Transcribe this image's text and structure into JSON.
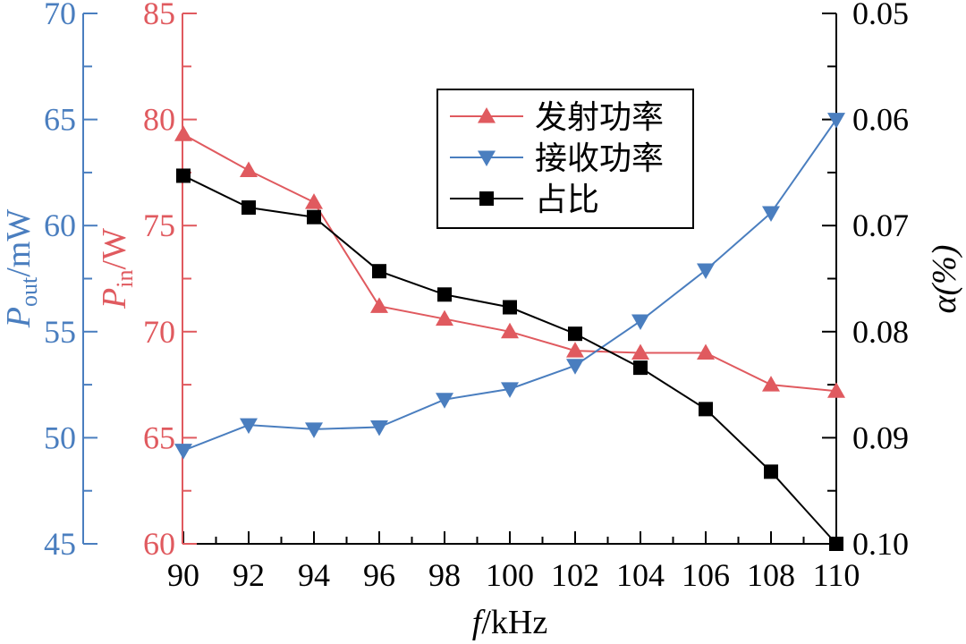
{
  "chart_data": {
    "type": "line",
    "xlabel_italic": "f",
    "xlabel_unit": "/kHz",
    "x": [
      90,
      92,
      94,
      96,
      98,
      100,
      102,
      104,
      106,
      108,
      110
    ],
    "xlim": [
      90,
      110
    ],
    "xticks": [
      "90",
      "92",
      "94",
      "96",
      "98",
      "100",
      "102",
      "104",
      "106",
      "108",
      "110"
    ],
    "axes": {
      "pout": {
        "label_main": "P",
        "label_sub": "out",
        "label_unit": "/mW",
        "ylim": [
          45,
          70
        ],
        "ticks": [
          "45",
          "50",
          "55",
          "60",
          "65",
          "70"
        ],
        "color": "#4a7ebf"
      },
      "pin": {
        "label_main": "P",
        "label_sub": "in",
        "label_unit": "/W",
        "ylim": [
          60,
          85
        ],
        "ticks": [
          "60",
          "65",
          "70",
          "75",
          "80",
          "85"
        ],
        "color": "#e05a5f"
      },
      "alpha": {
        "label": "α(%)",
        "ylim": [
          0.05,
          0.1
        ],
        "inverted": true,
        "ticks": [
          "0.05",
          "0.06",
          "0.07",
          "0.08",
          "0.09",
          "0.10"
        ],
        "color": "#000000"
      }
    },
    "series": [
      {
        "name": "发射功率",
        "axis": "pin",
        "marker": "triangle-up",
        "color": "#e05a5f",
        "values": [
          79.3,
          77.6,
          76.1,
          71.2,
          70.6,
          70.0,
          69.1,
          69.0,
          69.0,
          67.5,
          67.2
        ]
      },
      {
        "name": "接收功率",
        "axis": "pout",
        "marker": "triangle-down",
        "color": "#4a7ebf",
        "values": [
          49.4,
          50.6,
          50.4,
          50.5,
          51.8,
          52.3,
          53.4,
          55.5,
          57.9,
          60.6,
          65.0
        ]
      },
      {
        "name": "占比",
        "axis": "alpha",
        "marker": "square",
        "color": "#000000",
        "values": [
          0.0653,
          0.0683,
          0.0692,
          0.0743,
          0.0765,
          0.0777,
          0.0802,
          0.0834,
          0.0873,
          0.0932,
          0.1
        ]
      }
    ],
    "legend_position": "top-center",
    "grid": false
  }
}
